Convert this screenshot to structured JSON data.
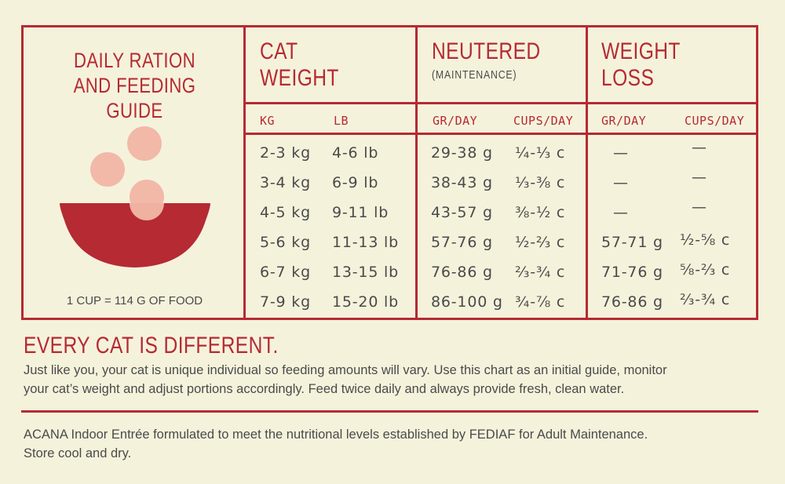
{
  "guide": {
    "title_line1": "DAILY RATION",
    "title_line2": "AND FEEDING GUIDE",
    "cup_note": "1 CUP = 114 G OF FOOD"
  },
  "columns": {
    "cat_weight": {
      "line1": "CAT",
      "line2": "WEIGHT",
      "sub1": "KG",
      "sub2": "LB"
    },
    "neutered": {
      "line1": "NEUTERED",
      "note": "(MAINTENANCE)",
      "sub1": "GR/DAY",
      "sub2": "CUPS/DAY"
    },
    "weight_loss": {
      "line1": "WEIGHT",
      "line2": "LOSS",
      "sub1": "GR/DAY",
      "sub2": "CUPS/DAY"
    }
  },
  "rows": [
    {
      "kg": "2-3 kg",
      "lb": "4-6 lb",
      "n_gr": "29-38 g",
      "n_cups": "¼-⅓ c",
      "l_gr": "—",
      "l_cups": "—"
    },
    {
      "kg": "3-4 kg",
      "lb": "6-9 lb",
      "n_gr": "38-43 g",
      "n_cups": "⅓-⅜ c",
      "l_gr": "—",
      "l_cups": "—"
    },
    {
      "kg": "4-5 kg",
      "lb": "9-11 lb",
      "n_gr": "43-57 g",
      "n_cups": "⅜-½ c",
      "l_gr": "—",
      "l_cups": "—"
    },
    {
      "kg": "5-6 kg",
      "lb": "11-13 lb",
      "n_gr": "57-76 g",
      "n_cups": "½-⅔ c",
      "l_gr": "57-71 g",
      "l_cups": "½-⅝ c"
    },
    {
      "kg": "6-7 kg",
      "lb": "13-15 lb",
      "n_gr": "76-86 g",
      "n_cups": "⅔-¾ c",
      "l_gr": "71-76 g",
      "l_cups": "⅝-⅔ c"
    },
    {
      "kg": "7-9 kg",
      "lb": "15-20 lb",
      "n_gr": "86-100 g",
      "n_cups": "¾-⅞ c",
      "l_gr": "76-86 g",
      "l_cups": "⅔-¾ c"
    }
  ],
  "every_cat": {
    "heading": "EVERY CAT IS DIFFERENT.",
    "line1": "Just like you, your cat is unique individual so feeding amounts will vary. Use this chart as an initial guide, monitor",
    "line2": "your cat’s weight and adjust portions accordingly. Feed twice daily and always provide fresh, clean water."
  },
  "footer": {
    "line1": "ACANA Indoor Entrée formulated to meet the nutritional levels established by FEDIAF  for Adult Maintenance.",
    "line2": "Store cool and dry."
  },
  "colors": {
    "accent": "#b52a33",
    "background": "#f5f2dc",
    "text": "#4a4a4a",
    "kibble": "#f2b8a8"
  }
}
